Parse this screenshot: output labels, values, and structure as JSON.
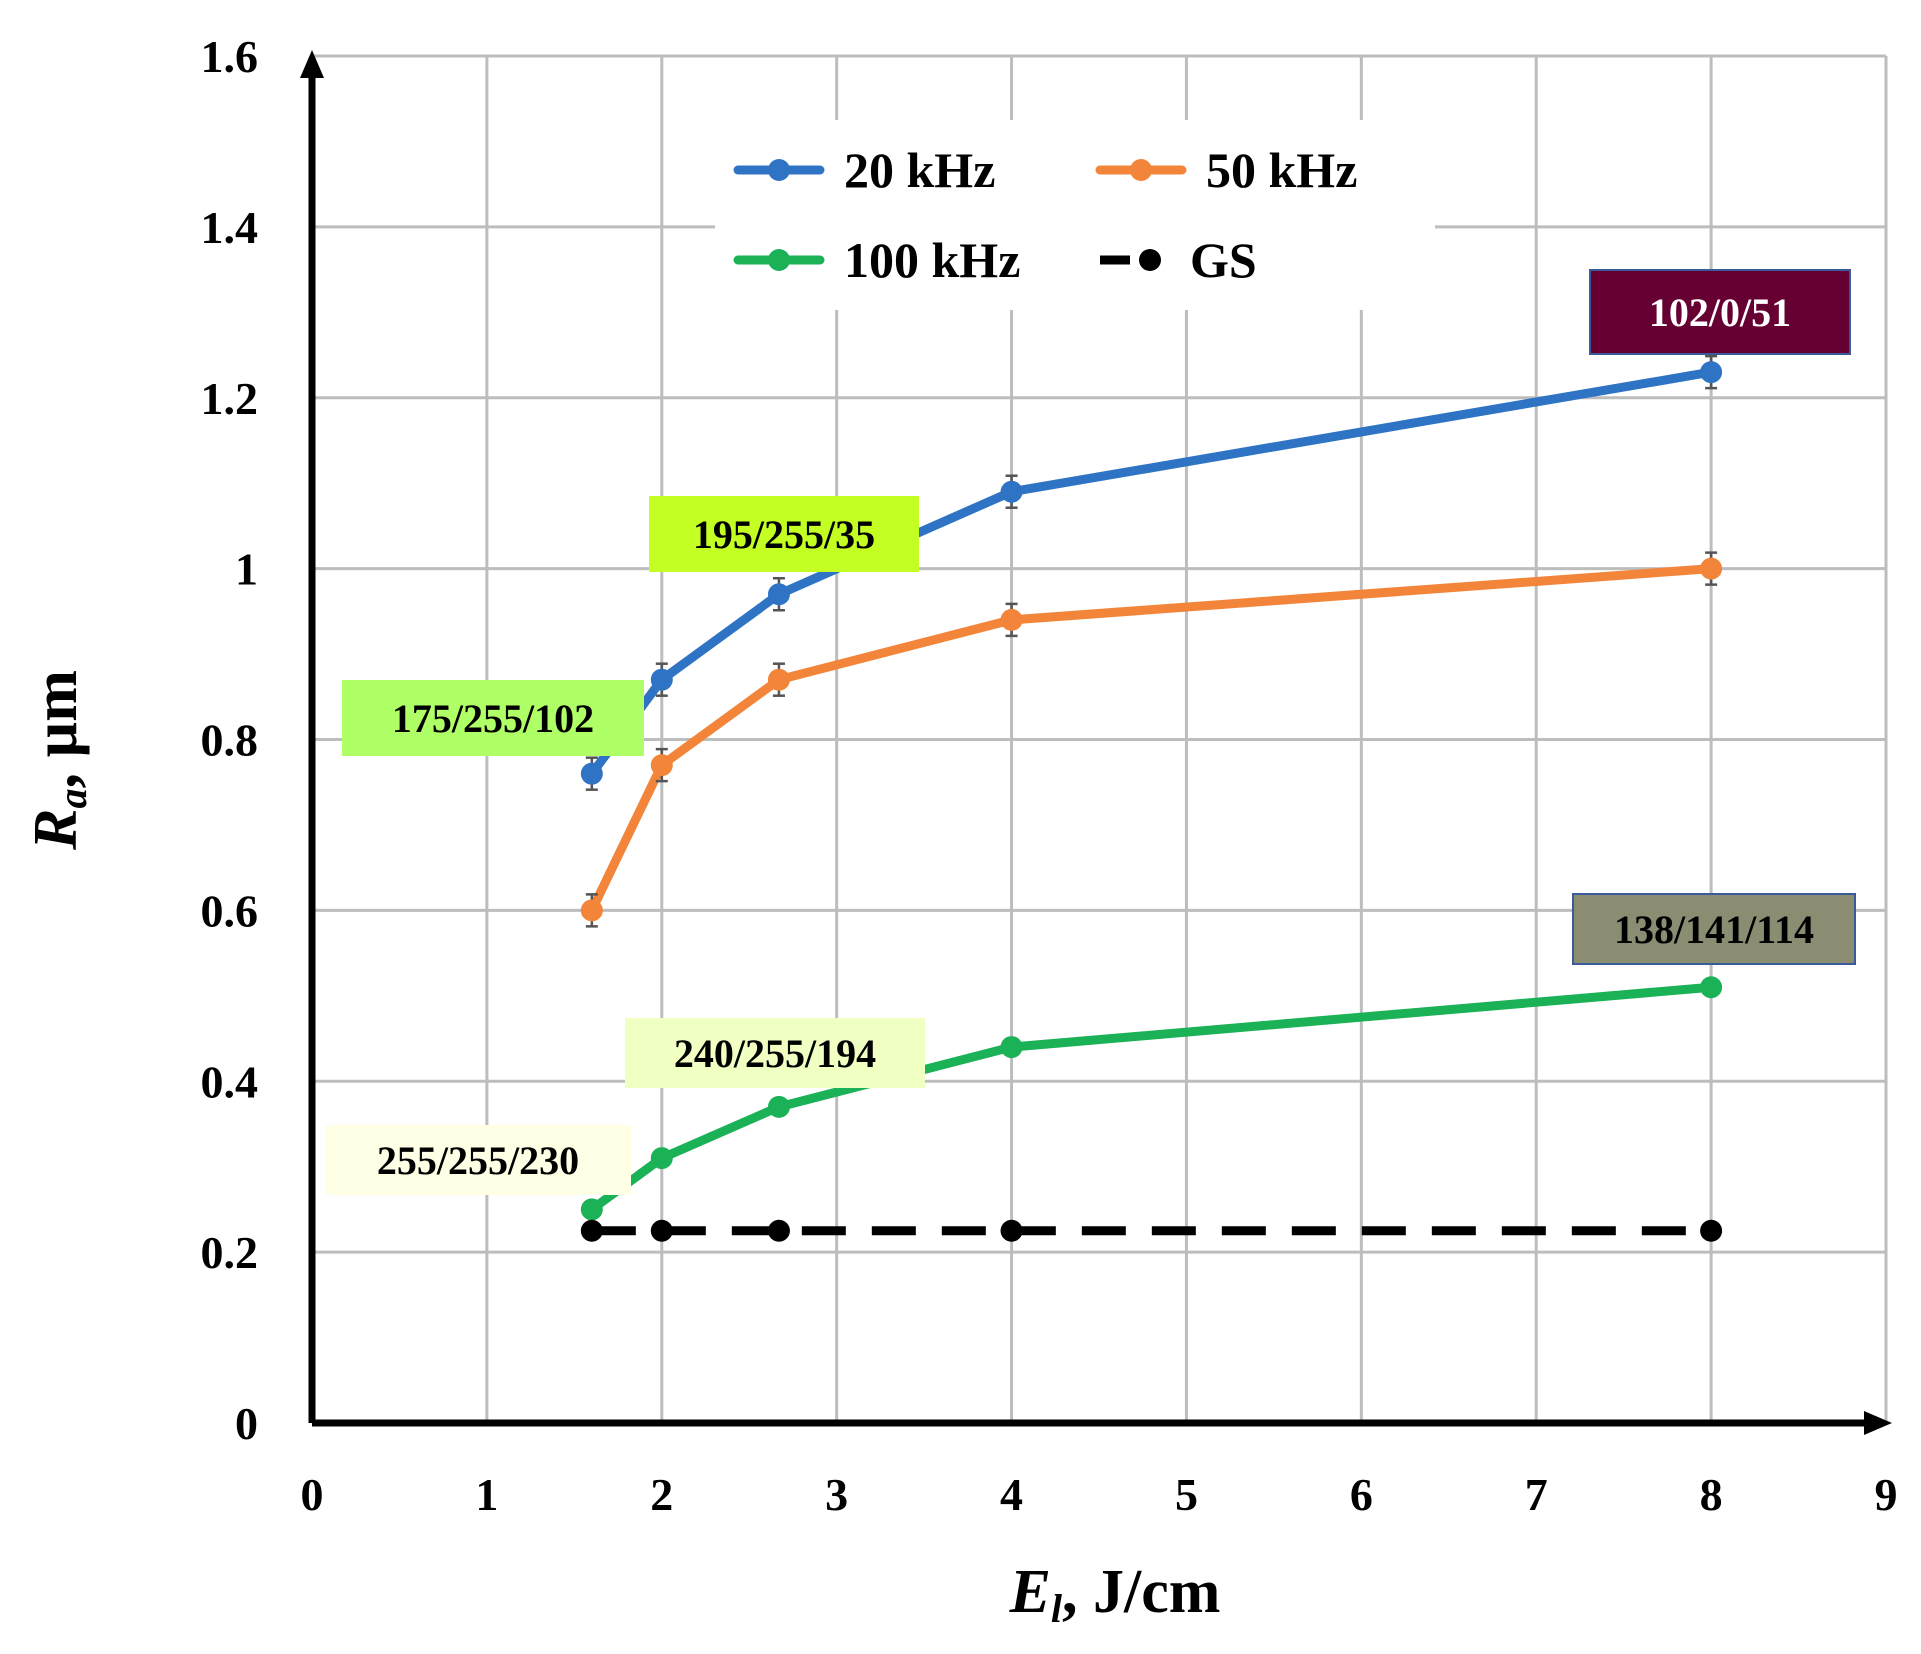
{
  "chart_data": {
    "type": "line",
    "title": "",
    "xlim": [
      0,
      9
    ],
    "ylim": [
      0,
      1.6
    ],
    "x_ticks": [
      "0",
      "1",
      "2",
      "3",
      "4",
      "5",
      "6",
      "7",
      "8",
      "9"
    ],
    "y_ticks": [
      "0",
      "0.2",
      "0.4",
      "0.6",
      "0.8",
      "1",
      "1.2",
      "1.4",
      "1.6"
    ],
    "xlabel": {
      "main": "E",
      "sub": "l",
      "rest": ", J/cm"
    },
    "ylabel": {
      "main": "R",
      "sub": "a",
      "rest": ", µm"
    },
    "grid": true,
    "legend_position": "top-center",
    "x": [
      1.6,
      2,
      2.67,
      4,
      8
    ],
    "series": [
      {
        "name": "20 kHz",
        "color": "#2f74c4",
        "values": [
          0.76,
          0.87,
          0.97,
          1.09,
          1.23
        ],
        "error_bars": true,
        "dashed": false
      },
      {
        "name": "50 kHz",
        "color": "#f2853a",
        "values": [
          0.6,
          0.77,
          0.87,
          0.94,
          1.0
        ],
        "error_bars": true,
        "dashed": false
      },
      {
        "name": "100 kHz",
        "color": "#1bb156",
        "values": [
          0.25,
          0.31,
          0.37,
          0.44,
          0.51
        ],
        "error_bars": false,
        "dashed": false
      },
      {
        "name": "GS",
        "color": "#000000",
        "values": [
          0.225,
          0.225,
          0.225,
          0.225,
          0.225
        ],
        "error_bars": false,
        "dashed": true
      }
    ],
    "annotations": [
      {
        "text": "102/0/51",
        "bg": "#660033",
        "fg": "#ffffff"
      },
      {
        "text": "195/255/35",
        "bg": "#c3ff23",
        "fg": "#000000"
      },
      {
        "text": "175/255/102",
        "bg": "#afff66",
        "fg": "#000000"
      },
      {
        "text": "138/141/114",
        "bg": "#8a8d72",
        "fg": "#000000"
      },
      {
        "text": "240/255/194",
        "bg": "#f0ffc2",
        "fg": "#000000"
      },
      {
        "text": "255/255/230",
        "bg": "#ffffe6",
        "fg": "#000000"
      }
    ]
  }
}
